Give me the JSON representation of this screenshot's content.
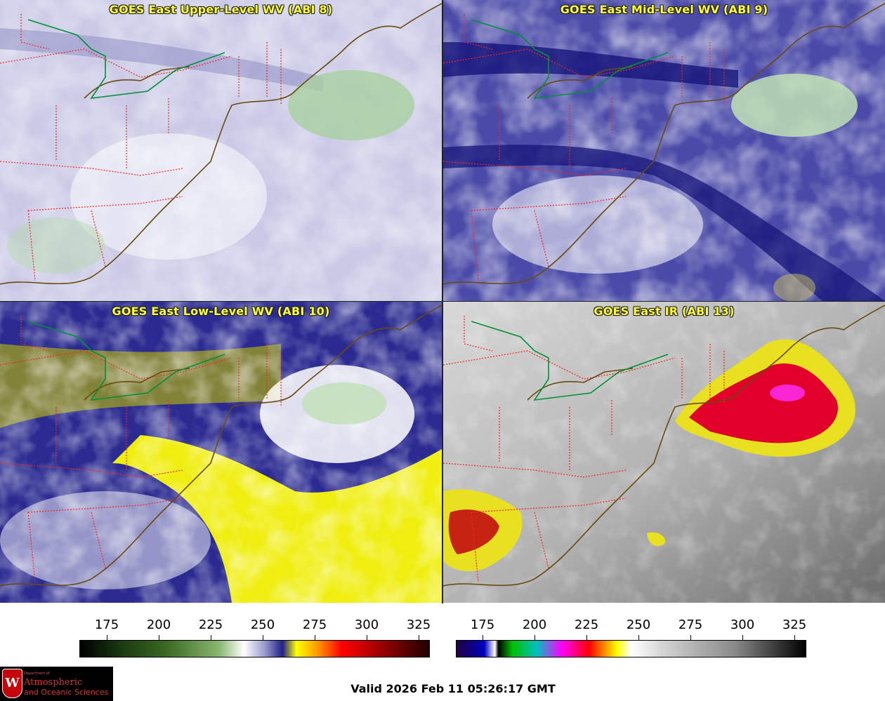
{
  "panels": [
    {
      "title": "GOES East Upper-Level WV (ABI 8)",
      "colormap": "wv"
    },
    {
      "title": "GOES East Mid-Level WV (ABI 9)",
      "colormap": "wv"
    },
    {
      "title": "GOES East Low-Level WV (ABI 10)",
      "colormap": "wv"
    },
    {
      "title": "GOES East IR (ABI 13)",
      "colormap": "ir"
    }
  ],
  "colorbars": [
    {
      "name": "wv-colorbar",
      "ticks": [
        "175",
        "200",
        "225",
        "250",
        "275",
        "300",
        "325"
      ]
    },
    {
      "name": "ir-colorbar",
      "ticks": [
        "175",
        "200",
        "225",
        "250",
        "275",
        "300",
        "325"
      ]
    }
  ],
  "logo": {
    "dept": "Department of",
    "line1": "Atmospheric",
    "line2": "and Oceanic Sciences",
    "seal_letter": "W"
  },
  "valid_time": "Valid 2026 Feb 11 05:26:17 GMT",
  "colors": {
    "title_text": "#ffff33",
    "state_borders": "#ff2020",
    "coastline": "#6b4a10",
    "international_border": "#009030",
    "wv_moist": "#ffffff",
    "wv_dry": "#1a1a8a",
    "wv_very_dry": "#ffff00",
    "ir_cold_cloud": "#e0002a"
  }
}
